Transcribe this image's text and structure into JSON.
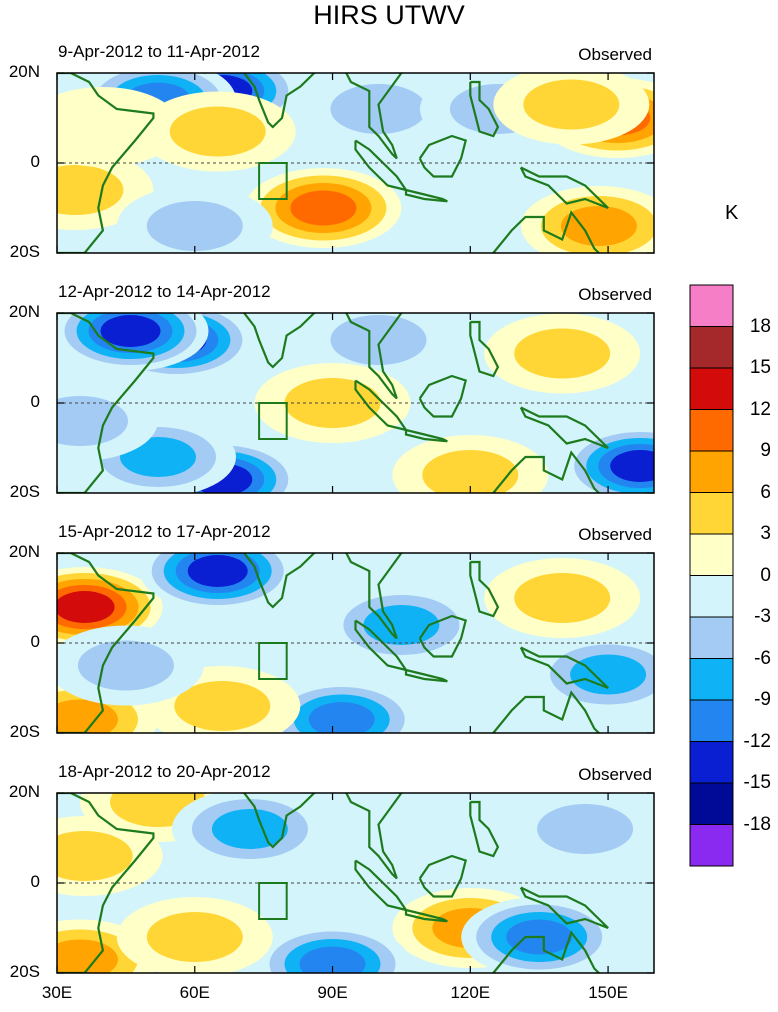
{
  "chart_data": {
    "type": "heatmap",
    "title": "HIRS UTWV",
    "units": "K",
    "colorbar": {
      "levels": [
        "18",
        "15",
        "12",
        "9",
        "6",
        "3",
        "0",
        "-3",
        "-6",
        "-9",
        "-12",
        "-15",
        "-18"
      ],
      "colors": [
        "#f57ec6",
        "#a5282a",
        "#d40b0b",
        "#ff6a00",
        "#ffa400",
        "#ffd635",
        "#ffffc8",
        "#d2f4fa",
        "#a3cbf4",
        "#0fb3f5",
        "#2386f0",
        "#0a1ed2",
        "#000a96",
        "#8a2af0"
      ]
    },
    "x_axis": {
      "range": [
        30,
        160
      ],
      "ticks": [
        "30E",
        "60E",
        "90E",
        "120E",
        "150E"
      ],
      "tick_values": [
        30,
        60,
        90,
        120,
        150
      ]
    },
    "y_axis": {
      "range": [
        -20,
        20
      ],
      "ticks": [
        "20N",
        "0",
        "20S"
      ],
      "tick_values": [
        20,
        0,
        -20
      ]
    },
    "panels": [
      {
        "period": "9-Apr-2012 to 11-Apr-2012",
        "source": "Observed",
        "features": [
          {
            "lon": 66,
            "lat": 16,
            "value": -15
          },
          {
            "lon": 52,
            "lat": 14,
            "value": -12
          },
          {
            "lon": 100,
            "lat": 12,
            "value": -6
          },
          {
            "lon": 126,
            "lat": 12,
            "value": -6
          },
          {
            "lon": 152,
            "lat": 10,
            "value": 12
          },
          {
            "lon": 142,
            "lat": 13,
            "value": 6
          },
          {
            "lon": 88,
            "lat": -10,
            "value": 12
          },
          {
            "lon": 148,
            "lat": -14,
            "value": 9
          },
          {
            "lon": 34,
            "lat": -6,
            "value": 6
          },
          {
            "lon": 40,
            "lat": 8,
            "value": 3
          },
          {
            "lon": 65,
            "lat": 7,
            "value": 6
          },
          {
            "lon": 60,
            "lat": -14,
            "value": -6
          }
        ]
      },
      {
        "period": "12-Apr-2012 to 14-Apr-2012",
        "source": "Observed",
        "features": [
          {
            "lon": 56,
            "lat": 14,
            "value": -15
          },
          {
            "lon": 46,
            "lat": 16,
            "value": -15
          },
          {
            "lon": 100,
            "lat": 14,
            "value": -6
          },
          {
            "lon": 140,
            "lat": 11,
            "value": 6
          },
          {
            "lon": 90,
            "lat": 0,
            "value": 6
          },
          {
            "lon": 66,
            "lat": -17,
            "value": -15
          },
          {
            "lon": 52,
            "lat": -12,
            "value": -9
          },
          {
            "lon": 157,
            "lat": -14,
            "value": -15
          },
          {
            "lon": 35,
            "lat": -4,
            "value": -6
          },
          {
            "lon": 120,
            "lat": -16,
            "value": 6
          }
        ]
      },
      {
        "period": "15-Apr-2012 to 17-Apr-2012",
        "source": "Observed",
        "features": [
          {
            "lon": 36,
            "lat": 8,
            "value": 15
          },
          {
            "lon": 65,
            "lat": 16,
            "value": -15
          },
          {
            "lon": 105,
            "lat": 4,
            "value": -9
          },
          {
            "lon": 140,
            "lat": 10,
            "value": 6
          },
          {
            "lon": 35,
            "lat": -17,
            "value": 9
          },
          {
            "lon": 92,
            "lat": -17,
            "value": -12
          },
          {
            "lon": 150,
            "lat": -7,
            "value": -9
          },
          {
            "lon": 66,
            "lat": -14,
            "value": 6
          },
          {
            "lon": 45,
            "lat": -5,
            "value": -6
          }
        ]
      },
      {
        "period": "18-Apr-2012 to 20-Apr-2012",
        "source": "Observed",
        "features": [
          {
            "lon": 36,
            "lat": 6,
            "value": 6
          },
          {
            "lon": 52,
            "lat": 18,
            "value": 6
          },
          {
            "lon": 72,
            "lat": 12,
            "value": -9
          },
          {
            "lon": 120,
            "lat": -10,
            "value": 9
          },
          {
            "lon": 135,
            "lat": -12,
            "value": -12
          },
          {
            "lon": 35,
            "lat": -17,
            "value": 9
          },
          {
            "lon": 90,
            "lat": -18,
            "value": -12
          },
          {
            "lon": 60,
            "lat": -12,
            "value": 6
          },
          {
            "lon": 145,
            "lat": 12,
            "value": -6
          }
        ]
      }
    ]
  }
}
